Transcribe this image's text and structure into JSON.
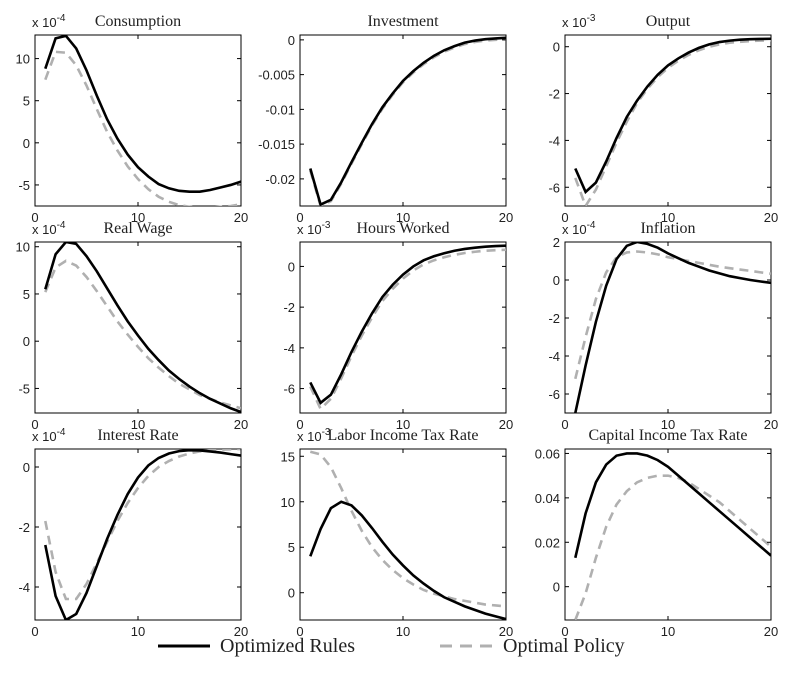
{
  "legend": {
    "optimized_label": "Optimized Rules",
    "optimal_label": "Optimal Policy"
  },
  "colors": {
    "optimized": "#000000",
    "optimal": "#b0b0b0",
    "axes": "#000000"
  },
  "chart_data": [
    {
      "type": "line",
      "title": "Consumption",
      "multiplier_base": "x 10",
      "multiplier_exp": "-4",
      "xlim": [
        0,
        20
      ],
      "ylim": [
        -7.5,
        12.8
      ],
      "xticks": [
        0,
        10,
        20
      ],
      "yticks": [
        10,
        5,
        0,
        -5
      ],
      "ytick_labels": [
        "10",
        "5",
        "0",
        "-5"
      ],
      "x": [
        1,
        2,
        3,
        4,
        5,
        6,
        7,
        8,
        9,
        10,
        11,
        12,
        13,
        14,
        15,
        16,
        17,
        18,
        19,
        20
      ],
      "series": [
        {
          "name": "Optimized Rules",
          "values": [
            8.8,
            12.4,
            12.7,
            11.2,
            8.6,
            5.6,
            2.8,
            0.5,
            -1.4,
            -2.9,
            -4.0,
            -4.9,
            -5.4,
            -5.7,
            -5.8,
            -5.8,
            -5.6,
            -5.3,
            -5.0,
            -4.6
          ]
        },
        {
          "name": "Optimal Policy",
          "values": [
            7.5,
            10.8,
            10.7,
            9.2,
            6.8,
            4.0,
            1.3,
            -0.9,
            -2.8,
            -4.3,
            -5.5,
            -6.4,
            -7.0,
            -7.4,
            -7.6,
            -7.7,
            -7.7,
            -7.6,
            -7.5,
            -7.3
          ]
        }
      ]
    },
    {
      "type": "line",
      "title": "Investment",
      "multiplier_base": "",
      "multiplier_exp": "",
      "xlim": [
        0,
        20
      ],
      "ylim": [
        -0.0239,
        0.0007
      ],
      "xticks": [
        0,
        10,
        20
      ],
      "yticks": [
        0,
        -0.005,
        -0.01,
        -0.015,
        -0.02
      ],
      "ytick_labels": [
        "0",
        "-0.005",
        "-0.01",
        "-0.015",
        "-0.02"
      ],
      "x": [
        1,
        2,
        3,
        4,
        5,
        6,
        7,
        8,
        9,
        10,
        11,
        12,
        13,
        14,
        15,
        16,
        17,
        18,
        19,
        20
      ],
      "series": [
        {
          "name": "Optimized Rules",
          "values": [
            -0.0185,
            -0.0237,
            -0.023,
            -0.0205,
            -0.0176,
            -0.0148,
            -0.0121,
            -0.0097,
            -0.0077,
            -0.0059,
            -0.0045,
            -0.0033,
            -0.0023,
            -0.0015,
            -0.0009,
            -0.0004,
            -0.0001,
            0.0001,
            0.0002,
            0.0003
          ]
        },
        {
          "name": "Optimal Policy",
          "values": [
            -0.0188,
            -0.0239,
            -0.0232,
            -0.0207,
            -0.0178,
            -0.015,
            -0.0123,
            -0.0099,
            -0.0079,
            -0.0061,
            -0.0047,
            -0.0035,
            -0.0025,
            -0.0017,
            -0.0011,
            -0.0006,
            -0.0003,
            -0.0001,
            0.0,
            0.0001
          ]
        }
      ]
    },
    {
      "type": "line",
      "title": "Output",
      "multiplier_base": "x 10",
      "multiplier_exp": "-3",
      "xlim": [
        0,
        20
      ],
      "ylim": [
        -6.8,
        0.5
      ],
      "xticks": [
        0,
        10,
        20
      ],
      "yticks": [
        0,
        -2,
        -4,
        -6
      ],
      "ytick_labels": [
        "0",
        "-2",
        "-4",
        "-6"
      ],
      "x": [
        1,
        2,
        3,
        4,
        5,
        6,
        7,
        8,
        9,
        10,
        11,
        12,
        13,
        14,
        15,
        16,
        17,
        18,
        19,
        20
      ],
      "series": [
        {
          "name": "Optimized Rules",
          "values": [
            -5.2,
            -6.2,
            -5.8,
            -4.9,
            -3.9,
            -3.0,
            -2.3,
            -1.7,
            -1.2,
            -0.8,
            -0.5,
            -0.25,
            -0.05,
            0.1,
            0.2,
            0.26,
            0.3,
            0.32,
            0.33,
            0.34
          ]
        },
        {
          "name": "Optimal Policy",
          "values": [
            -5.6,
            -6.8,
            -6.1,
            -5.1,
            -4.1,
            -3.2,
            -2.4,
            -1.8,
            -1.3,
            -0.9,
            -0.6,
            -0.35,
            -0.15,
            0.0,
            0.1,
            0.17,
            0.21,
            0.24,
            0.26,
            0.27
          ]
        }
      ]
    },
    {
      "type": "line",
      "title": "Real Wage",
      "multiplier_base": "x 10",
      "multiplier_exp": "-4",
      "xlim": [
        0,
        20
      ],
      "ylim": [
        -7.6,
        10.5
      ],
      "xticks": [
        0,
        10,
        20
      ],
      "yticks": [
        10,
        5,
        0,
        -5
      ],
      "ytick_labels": [
        "10",
        "5",
        "0",
        "-5"
      ],
      "x": [
        1,
        2,
        3,
        4,
        5,
        6,
        7,
        8,
        9,
        10,
        11,
        12,
        13,
        14,
        15,
        16,
        17,
        18,
        19,
        20
      ],
      "series": [
        {
          "name": "Optimized Rules",
          "values": [
            5.5,
            9.2,
            10.5,
            10.3,
            9.0,
            7.4,
            5.6,
            3.8,
            2.1,
            0.6,
            -0.8,
            -2.0,
            -3.1,
            -4.0,
            -4.8,
            -5.5,
            -6.1,
            -6.6,
            -7.1,
            -7.5
          ]
        },
        {
          "name": "Optimal Policy",
          "values": [
            5.2,
            7.8,
            8.5,
            8.0,
            6.8,
            5.3,
            3.7,
            2.1,
            0.7,
            -0.6,
            -1.8,
            -2.8,
            -3.7,
            -4.5,
            -5.1,
            -5.7,
            -6.1,
            -6.5,
            -6.8,
            -7.1
          ]
        }
      ]
    },
    {
      "type": "line",
      "title": "Hours Worked",
      "multiplier_base": "x 10",
      "multiplier_exp": "-3",
      "xlim": [
        0,
        20
      ],
      "ylim": [
        -7.2,
        1.2
      ],
      "xticks": [
        0,
        10,
        20
      ],
      "yticks": [
        0,
        -2,
        -4,
        -6
      ],
      "ytick_labels": [
        "0",
        "-2",
        "-4",
        "-6"
      ],
      "x": [
        1,
        2,
        3,
        4,
        5,
        6,
        7,
        8,
        9,
        10,
        11,
        12,
        13,
        14,
        15,
        16,
        17,
        18,
        19,
        20
      ],
      "series": [
        {
          "name": "Optimized Rules",
          "values": [
            -5.7,
            -6.7,
            -6.3,
            -5.3,
            -4.2,
            -3.2,
            -2.3,
            -1.5,
            -0.9,
            -0.4,
            0.0,
            0.3,
            0.5,
            0.65,
            0.77,
            0.86,
            0.92,
            0.97,
            1.0,
            1.02
          ]
        },
        {
          "name": "Optimal Policy",
          "values": [
            -5.9,
            -7.0,
            -6.5,
            -5.5,
            -4.4,
            -3.4,
            -2.5,
            -1.7,
            -1.1,
            -0.6,
            -0.2,
            0.1,
            0.3,
            0.45,
            0.57,
            0.66,
            0.72,
            0.77,
            0.8,
            0.82
          ]
        }
      ]
    },
    {
      "type": "line",
      "title": "Inflation",
      "multiplier_base": "x 10",
      "multiplier_exp": "-4",
      "xlim": [
        0,
        20
      ],
      "ylim": [
        -7.0,
        2.0
      ],
      "xticks": [
        0,
        10,
        20
      ],
      "yticks": [
        2,
        0,
        -2,
        -4,
        -6
      ],
      "ytick_labels": [
        "2",
        "0",
        "-2",
        "-4",
        "-6"
      ],
      "x": [
        1,
        2,
        3,
        4,
        5,
        6,
        7,
        8,
        9,
        10,
        11,
        12,
        13,
        14,
        15,
        16,
        17,
        18,
        19,
        20
      ],
      "series": [
        {
          "name": "Optimized Rules",
          "values": [
            -7.0,
            -4.5,
            -2.2,
            -0.3,
            1.1,
            1.8,
            2.0,
            1.9,
            1.7,
            1.4,
            1.15,
            0.9,
            0.7,
            0.5,
            0.35,
            0.2,
            0.1,
            0.0,
            -0.08,
            -0.15
          ]
        },
        {
          "name": "Optimal Policy",
          "values": [
            -5.2,
            -3.0,
            -1.0,
            0.4,
            1.2,
            1.45,
            1.5,
            1.45,
            1.35,
            1.2,
            1.1,
            1.0,
            0.9,
            0.8,
            0.7,
            0.62,
            0.55,
            0.48,
            0.4,
            0.33
          ]
        }
      ]
    },
    {
      "type": "line",
      "title": "Interest Rate",
      "multiplier_base": "x 10",
      "multiplier_exp": "-4",
      "xlim": [
        0,
        20
      ],
      "ylim": [
        -5.1,
        0.6
      ],
      "xticks": [
        0,
        10,
        20
      ],
      "yticks": [
        0,
        -2,
        -4
      ],
      "ytick_labels": [
        "0",
        "-2",
        "-4"
      ],
      "x": [
        1,
        2,
        3,
        4,
        5,
        6,
        7,
        8,
        9,
        10,
        11,
        12,
        13,
        14,
        15,
        16,
        17,
        18,
        19,
        20
      ],
      "series": [
        {
          "name": "Optimized Rules",
          "values": [
            -2.6,
            -4.3,
            -5.1,
            -4.9,
            -4.2,
            -3.3,
            -2.4,
            -1.6,
            -0.9,
            -0.35,
            0.05,
            0.3,
            0.45,
            0.53,
            0.56,
            0.55,
            0.52,
            0.48,
            0.43,
            0.38
          ]
        },
        {
          "name": "Optimal Policy",
          "values": [
            -1.8,
            -3.5,
            -4.4,
            -4.4,
            -3.9,
            -3.2,
            -2.5,
            -1.8,
            -1.2,
            -0.7,
            -0.3,
            0.0,
            0.2,
            0.35,
            0.45,
            0.52,
            0.56,
            0.58,
            0.59,
            0.6
          ]
        }
      ]
    },
    {
      "type": "line",
      "title": "Labor Income Tax Rate",
      "multiplier_base": "x 10",
      "multiplier_exp": "-3",
      "xlim": [
        0,
        20
      ],
      "ylim": [
        -3.0,
        15.8
      ],
      "xticks": [
        0,
        10,
        20
      ],
      "yticks": [
        15,
        10,
        5,
        0
      ],
      "ytick_labels": [
        "15",
        "10",
        "5",
        "0"
      ],
      "x": [
        1,
        2,
        3,
        4,
        5,
        6,
        7,
        8,
        9,
        10,
        11,
        12,
        13,
        14,
        15,
        16,
        17,
        18,
        19,
        20
      ],
      "series": [
        {
          "name": "Optimized Rules",
          "values": [
            4.0,
            7.0,
            9.3,
            10.0,
            9.6,
            8.5,
            7.1,
            5.6,
            4.2,
            3.0,
            1.9,
            1.0,
            0.2,
            -0.5,
            -1.0,
            -1.5,
            -1.9,
            -2.3,
            -2.6,
            -2.9
          ]
        },
        {
          "name": "Optimal Policy",
          "values": [
            15.5,
            15.2,
            13.8,
            11.5,
            9.0,
            6.8,
            5.0,
            3.6,
            2.5,
            1.6,
            0.9,
            0.3,
            -0.1,
            -0.4,
            -0.7,
            -0.9,
            -1.1,
            -1.3,
            -1.4,
            -1.5
          ]
        }
      ]
    },
    {
      "type": "line",
      "title": "Capital Income Tax Rate",
      "multiplier_base": "",
      "multiplier_exp": "",
      "xlim": [
        0,
        20
      ],
      "ylim": [
        -0.015,
        0.062
      ],
      "xticks": [
        0,
        10,
        20
      ],
      "yticks": [
        0.06,
        0.04,
        0.02,
        0
      ],
      "ytick_labels": [
        "0.06",
        "0.04",
        "0.02",
        "0"
      ],
      "x": [
        1,
        2,
        3,
        4,
        5,
        6,
        7,
        8,
        9,
        10,
        11,
        12,
        13,
        14,
        15,
        16,
        17,
        18,
        19,
        20
      ],
      "series": [
        {
          "name": "Optimized Rules",
          "values": [
            0.013,
            0.033,
            0.047,
            0.055,
            0.059,
            0.06,
            0.06,
            0.059,
            0.057,
            0.054,
            0.05,
            0.046,
            0.042,
            0.038,
            0.034,
            0.03,
            0.026,
            0.022,
            0.018,
            0.014
          ]
        },
        {
          "name": "Optimal Policy",
          "values": [
            -0.015,
            -0.003,
            0.013,
            0.027,
            0.037,
            0.043,
            0.047,
            0.049,
            0.05,
            0.05,
            0.049,
            0.047,
            0.044,
            0.041,
            0.038,
            0.034,
            0.03,
            0.026,
            0.022,
            0.018
          ]
        }
      ]
    }
  ]
}
